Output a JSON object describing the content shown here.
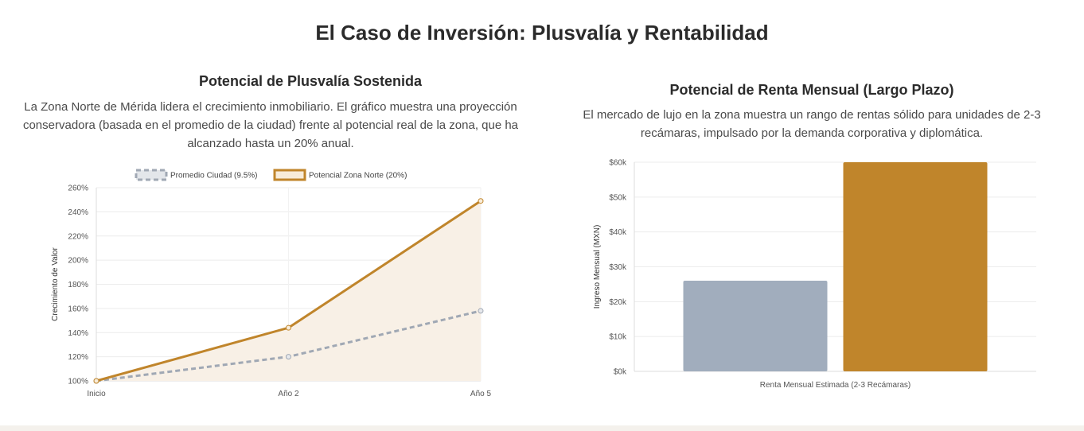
{
  "page_title": "El Caso de Inversión: Plusvalía y Rentabilidad",
  "left": {
    "title": "Potencial de Plusvalía Sostenida",
    "description": "La Zona Norte de Mérida lidera el crecimiento inmobiliario. El gráfico muestra una proyección conservadora (basada en el promedio de la ciudad) frente al potencial real de la zona, que ha alcanzado hasta un 20% anual."
  },
  "right": {
    "title": "Potencial de Renta Mensual (Largo Plazo)",
    "description": "El mercado de lujo en la zona muestra un rango de rentas sólido para unidades de 2-3 recámaras, impulsado por la demanda corporativa y diplomática."
  },
  "colors": {
    "gold": "#c0852b",
    "gray": "#a1adbd",
    "gray_line": "#a0a8b4",
    "fill": "#f8f0e6"
  },
  "chart_data": [
    {
      "type": "line",
      "title": "",
      "xlabel": "",
      "ylabel": "Crecimiento de Valor",
      "categories": [
        "Inicio",
        "Año 2",
        "Año 5"
      ],
      "y_ticks": [
        "100%",
        "120%",
        "140%",
        "160%",
        "180%",
        "200%",
        "220%",
        "240%",
        "260%"
      ],
      "ylim": [
        100,
        260
      ],
      "legend_position": "top",
      "grid": true,
      "series": [
        {
          "name": "Promedio Ciudad (9.5%)",
          "values": [
            100,
            120,
            158
          ],
          "style": "dashed",
          "color": "#a0a8b4"
        },
        {
          "name": "Potencial Zona Norte (20%)",
          "values": [
            100,
            144,
            249
          ],
          "style": "solid",
          "fill": true,
          "color": "#c0852b"
        }
      ]
    },
    {
      "type": "bar",
      "title": "",
      "xlabel": "Renta Mensual Estimada (2-3 Recámaras)",
      "ylabel": "Ingreso Mensual (MXN)",
      "y_ticks": [
        "$0k",
        "$10k",
        "$20k",
        "$30k",
        "$40k",
        "$50k",
        "$60k"
      ],
      "ylim": [
        0,
        60000
      ],
      "grid": true,
      "values": [
        26000,
        60000
      ],
      "colors": [
        "#a1adbd",
        "#c0852b"
      ]
    }
  ]
}
